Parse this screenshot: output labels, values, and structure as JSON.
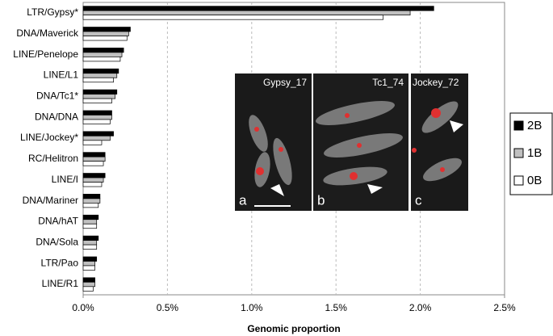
{
  "chart_data": {
    "type": "bar",
    "orientation": "horizontal",
    "x_label": "Genomic proportion",
    "categories": [
      "LTR/Gypsy*",
      "DNA/Maverick",
      "LINE/Penelope",
      "LINE/L1",
      "DNA/Tc1*",
      "DNA/DNA",
      "LINE/Jockey*",
      "RC/Helitron",
      "LINE/I",
      "DNA/Mariner",
      "DNA/hAT",
      "DNA/Sola",
      "LTR/Pao",
      "LINE/R1"
    ],
    "series": [
      {
        "name": "2B",
        "color": "#000000",
        "values": [
          2.08,
          0.28,
          0.24,
          0.21,
          0.2,
          0.17,
          0.18,
          0.13,
          0.13,
          0.1,
          0.09,
          0.09,
          0.08,
          0.07
        ]
      },
      {
        "name": "1B",
        "color": "#c0c0c0",
        "values": [
          1.94,
          0.27,
          0.23,
          0.2,
          0.19,
          0.17,
          0.16,
          0.13,
          0.12,
          0.1,
          0.08,
          0.08,
          0.07,
          0.07
        ]
      },
      {
        "name": "0B",
        "color": "#ffffff",
        "values": [
          1.78,
          0.26,
          0.22,
          0.18,
          0.17,
          0.16,
          0.11,
          0.12,
          0.11,
          0.09,
          0.08,
          0.08,
          0.07,
          0.06
        ]
      }
    ],
    "xlim": [
      0,
      2.5
    ],
    "xticks": [
      {
        "value": 0,
        "label": "0.0%"
      },
      {
        "value": 0.5,
        "label": "0.5%"
      },
      {
        "value": 1,
        "label": "1.0%"
      },
      {
        "value": 1.5,
        "label": "1.5%"
      },
      {
        "value": 2,
        "label": "2.0%"
      },
      {
        "value": 2.5,
        "label": "2.5%"
      }
    ],
    "grid": true,
    "legend": "right",
    "inset_panels": [
      {
        "letter": "a",
        "label": "Gypsy_17"
      },
      {
        "letter": "b",
        "label": "Tc1_74"
      },
      {
        "letter": "c",
        "label": "Jockey_72"
      }
    ]
  }
}
